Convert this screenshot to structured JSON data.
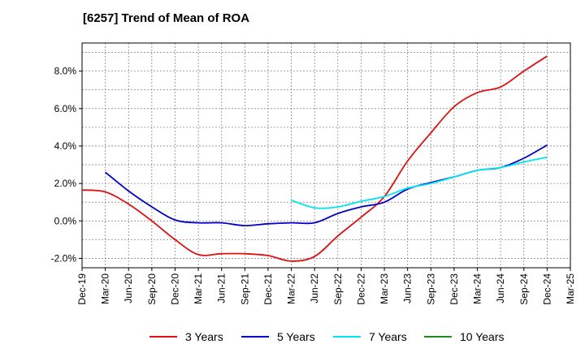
{
  "chart_data": {
    "type": "line",
    "title": "[6257]  Trend of Mean of ROA",
    "xlabel": "",
    "ylabel": "",
    "ylim": [
      -2.5,
      9.5
    ],
    "yticks": [
      -2.0,
      0.0,
      2.0,
      4.0,
      6.0,
      8.0
    ],
    "ytick_labels": [
      "-2.0%",
      "0.0%",
      "2.0%",
      "4.0%",
      "6.0%",
      "8.0%"
    ],
    "x_tick_labels": [
      "Dec-19",
      "Mar-20",
      "Jun-20",
      "Sep-20",
      "Dec-20",
      "Mar-21",
      "Jun-21",
      "Sep-21",
      "Dec-21",
      "Mar-22",
      "Jun-22",
      "Sep-22",
      "Dec-22",
      "Mar-23",
      "Jun-23",
      "Sep-23",
      "Dec-23",
      "Mar-24",
      "Jun-24",
      "Sep-24",
      "Dec-24",
      "Mar-25"
    ],
    "grid": true,
    "legend_position": "bottom",
    "series": [
      {
        "name": "3 Years",
        "color": "#dd1111",
        "x": [
          0,
          1,
          2,
          3,
          4,
          5,
          6,
          7,
          8,
          9,
          10,
          11,
          12,
          13,
          14,
          15,
          16,
          17,
          18,
          19,
          20
        ],
        "values": [
          1.65,
          1.55,
          0.9,
          0.0,
          -1.0,
          -1.8,
          -1.75,
          -1.75,
          -1.85,
          -2.15,
          -1.9,
          -0.8,
          0.2,
          1.3,
          3.2,
          4.7,
          6.1,
          6.85,
          7.15,
          8.0,
          8.8
        ]
      },
      {
        "name": "5 Years",
        "color": "#0000cc",
        "x": [
          1,
          2,
          3,
          4,
          5,
          6,
          7,
          8,
          9,
          10,
          11,
          12,
          13,
          14,
          15,
          16,
          17,
          18,
          19,
          20
        ],
        "values": [
          2.6,
          1.6,
          0.75,
          0.05,
          -0.1,
          -0.1,
          -0.25,
          -0.15,
          -0.1,
          -0.1,
          0.4,
          0.75,
          1.0,
          1.7,
          2.05,
          2.35,
          2.7,
          2.85,
          3.35,
          4.05
        ]
      },
      {
        "name": "7 Years",
        "color": "#00e5ee",
        "x": [
          9,
          10,
          11,
          12,
          13,
          14,
          15,
          16,
          17,
          18,
          19,
          20
        ],
        "values": [
          1.1,
          0.7,
          0.75,
          1.05,
          1.3,
          1.75,
          2.0,
          2.35,
          2.7,
          2.85,
          3.15,
          3.4
        ]
      },
      {
        "name": "10 Years",
        "color": "#228822",
        "x": [],
        "values": []
      }
    ]
  }
}
